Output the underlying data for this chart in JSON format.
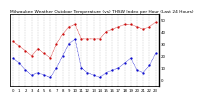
{
  "title": "Milwaukee Weather Outdoor Temperature (vs) THSW Index per Hour (Last 24 Hours)",
  "hours": [
    0,
    1,
    2,
    3,
    4,
    5,
    6,
    7,
    8,
    9,
    10,
    11,
    12,
    13,
    14,
    15,
    16,
    17,
    18,
    19,
    20,
    21,
    22,
    23
  ],
  "temp": [
    32,
    28,
    24,
    20,
    26,
    22,
    18,
    30,
    38,
    44,
    46,
    34,
    34,
    34,
    34,
    40,
    42,
    44,
    46,
    46,
    44,
    42,
    44,
    48
  ],
  "thsw": [
    18,
    14,
    8,
    4,
    6,
    4,
    2,
    10,
    20,
    30,
    34,
    10,
    6,
    4,
    2,
    6,
    8,
    10,
    14,
    18,
    8,
    6,
    12,
    22
  ],
  "temp_color": "#cc0000",
  "thsw_color": "#0000cc",
  "bg_color": "#ffffff",
  "ylim_min": -5,
  "ylim_max": 55,
  "yticks": [
    0,
    10,
    20,
    30,
    40,
    50
  ],
  "grid_color": "#aaaaaa",
  "title_fontsize": 3.2,
  "tick_fontsize": 2.8,
  "border_color": "#000000"
}
